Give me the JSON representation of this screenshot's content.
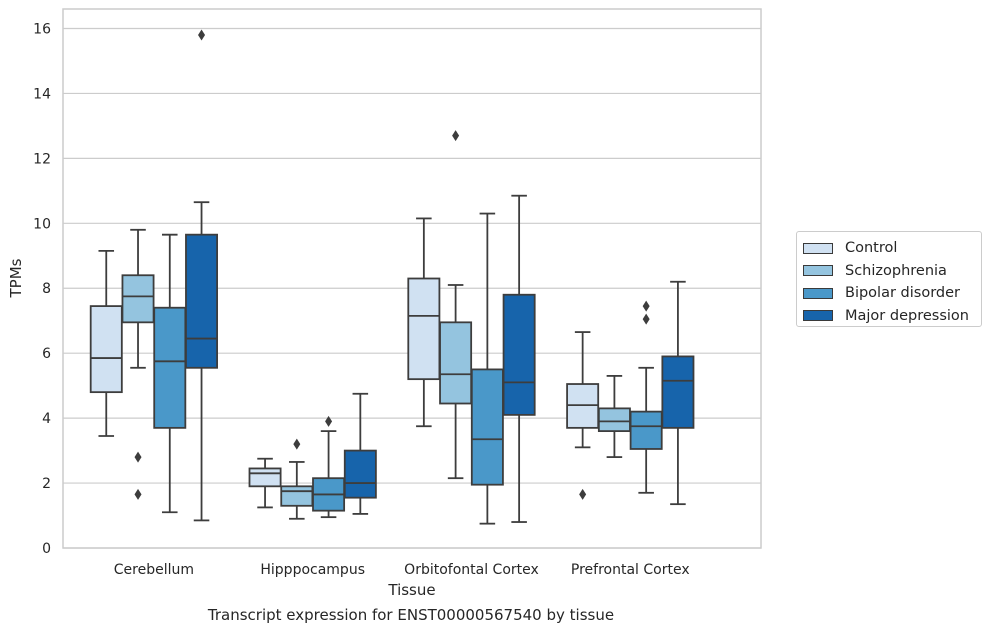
{
  "chart_data": {
    "type": "box",
    "title": "Transcript expression for ENST00000567540 by tissue",
    "xlabel": "Tissue",
    "ylabel": "TPMs",
    "ylim": [
      0,
      16.6
    ],
    "yticks": [
      0,
      2,
      4,
      6,
      8,
      10,
      12,
      14,
      16
    ],
    "grid": "horizontal",
    "legend_position": "right",
    "categories": [
      "Cerebellum",
      "Hipppocampus",
      "Orbitofontal Cortex",
      "Prefrontal Cortex"
    ],
    "series": [
      {
        "name": "Control",
        "color": "#d0e1f2",
        "boxes": [
          {
            "whislo": 3.45,
            "q1": 4.8,
            "med": 5.85,
            "q3": 7.45,
            "whishi": 9.15,
            "fliers": []
          },
          {
            "whislo": 1.25,
            "q1": 1.9,
            "med": 2.3,
            "q3": 2.45,
            "whishi": 2.75,
            "fliers": []
          },
          {
            "whislo": 3.75,
            "q1": 5.2,
            "med": 7.15,
            "q3": 8.3,
            "whishi": 10.15,
            "fliers": []
          },
          {
            "whislo": 3.1,
            "q1": 3.7,
            "med": 4.4,
            "q3": 5.05,
            "whishi": 6.65,
            "fliers": [
              1.65
            ]
          }
        ]
      },
      {
        "name": "Schizophrenia",
        "color": "#94c4df",
        "boxes": [
          {
            "whislo": 5.55,
            "q1": 6.95,
            "med": 7.75,
            "q3": 8.4,
            "whishi": 9.8,
            "fliers": [
              2.8,
              1.65
            ]
          },
          {
            "whislo": 0.9,
            "q1": 1.3,
            "med": 1.75,
            "q3": 1.9,
            "whishi": 2.65,
            "fliers": [
              3.2
            ]
          },
          {
            "whislo": 2.15,
            "q1": 4.45,
            "med": 5.35,
            "q3": 6.95,
            "whishi": 8.1,
            "fliers": [
              12.7
            ]
          },
          {
            "whislo": 2.8,
            "q1": 3.6,
            "med": 3.9,
            "q3": 4.3,
            "whishi": 5.3,
            "fliers": []
          }
        ]
      },
      {
        "name": "Bipolar disorder",
        "color": "#4a98c9",
        "boxes": [
          {
            "whislo": 1.1,
            "q1": 3.7,
            "med": 5.75,
            "q3": 7.4,
            "whishi": 9.65,
            "fliers": []
          },
          {
            "whislo": 0.95,
            "q1": 1.15,
            "med": 1.65,
            "q3": 2.15,
            "whishi": 3.6,
            "fliers": [
              3.9
            ]
          },
          {
            "whislo": 0.75,
            "q1": 1.95,
            "med": 3.35,
            "q3": 5.5,
            "whishi": 10.3,
            "fliers": []
          },
          {
            "whislo": 1.7,
            "q1": 3.05,
            "med": 3.75,
            "q3": 4.2,
            "whishi": 5.55,
            "fliers": [
              7.05,
              7.45
            ]
          }
        ]
      },
      {
        "name": "Major depression",
        "color": "#1764ab",
        "boxes": [
          {
            "whislo": 0.85,
            "q1": 5.55,
            "med": 6.45,
            "q3": 9.65,
            "whishi": 10.65,
            "fliers": [
              15.8
            ]
          },
          {
            "whislo": 1.05,
            "q1": 1.55,
            "med": 2.0,
            "q3": 3.0,
            "whishi": 4.75,
            "fliers": []
          },
          {
            "whislo": 0.8,
            "q1": 4.1,
            "med": 5.1,
            "q3": 7.8,
            "whishi": 10.85,
            "fliers": []
          },
          {
            "whislo": 1.35,
            "q1": 3.7,
            "med": 5.15,
            "q3": 5.9,
            "whishi": 8.2,
            "fliers": []
          }
        ]
      }
    ]
  }
}
